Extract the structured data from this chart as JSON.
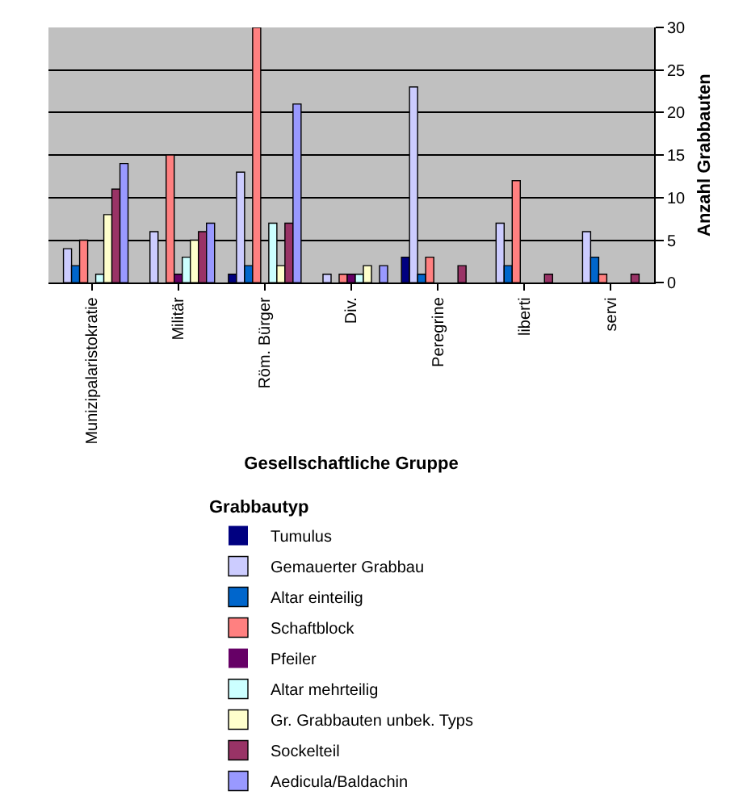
{
  "chart_data": {
    "type": "bar",
    "xlabel": "Gesellschaftliche Gruppe",
    "ylabel": "Anzahl Grabbauten",
    "legend_title": "Grabbautyp",
    "categories": [
      "Munizipalaristokratie",
      "Militär",
      "Röm. Bürger",
      "Div.",
      "Peregrine",
      "liberti",
      "servi"
    ],
    "series": [
      {
        "name": "Tumulus",
        "color": "#000080",
        "values": [
          0,
          0,
          1,
          0,
          3,
          0,
          0
        ]
      },
      {
        "name": "Gemauerter Grabbau",
        "color": "#ccccff",
        "values": [
          4,
          6,
          13,
          1,
          23,
          7,
          6
        ]
      },
      {
        "name": "Altar einteilig",
        "color": "#0066cc",
        "values": [
          2,
          0,
          2,
          0,
          1,
          2,
          3
        ]
      },
      {
        "name": "Schaftblock",
        "color": "#ff8080",
        "values": [
          5,
          15,
          30,
          1,
          3,
          12,
          1
        ]
      },
      {
        "name": "Pfeiler",
        "color": "#660066",
        "values": [
          0,
          1,
          0,
          1,
          0,
          0,
          0
        ]
      },
      {
        "name": "Altar mehrteilig",
        "color": "#ccffff",
        "values": [
          1,
          3,
          7,
          1,
          0,
          0,
          0
        ]
      },
      {
        "name": "Gr. Grabbauten unbek. Typs",
        "color": "#ffffcc",
        "values": [
          8,
          5,
          2,
          2,
          0,
          0,
          0
        ]
      },
      {
        "name": "Sockelteil",
        "color": "#993366",
        "values": [
          11,
          6,
          7,
          0,
          2,
          1,
          1
        ]
      },
      {
        "name": "Aedicula/Baldachin",
        "color": "#9999ff",
        "values": [
          14,
          7,
          21,
          2,
          0,
          0,
          0
        ]
      }
    ],
    "ylim": [
      0,
      30
    ],
    "yticks": [
      0,
      5,
      10,
      15,
      20,
      25,
      30
    ],
    "grid": "y",
    "legend": "bottom"
  }
}
